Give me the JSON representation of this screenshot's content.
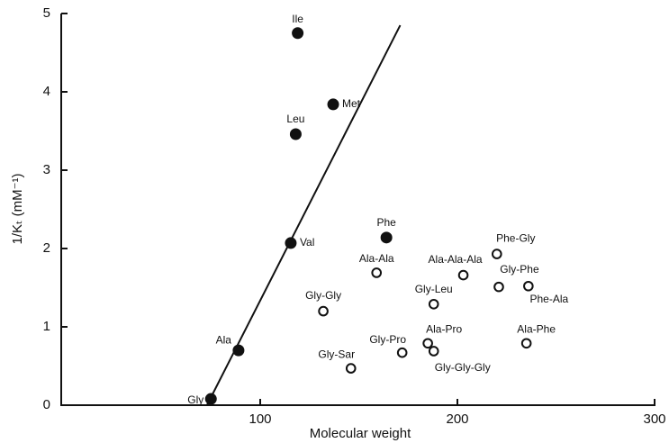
{
  "chart_data": {
    "type": "scatter",
    "xlabel": "Molecular weight",
    "ylabel": "1/Kₜ (mM⁻¹)",
    "xlim": [
      0,
      300
    ],
    "ylim": [
      0,
      5
    ],
    "xticks": [
      100,
      200,
      300
    ],
    "yticks": [
      0,
      1,
      2,
      3,
      4,
      5
    ],
    "color": "#111111",
    "series": [
      {
        "marker": "filled",
        "labels": [
          "Gly",
          "Ala",
          "Val",
          "Leu",
          "Ile",
          "Met",
          "Phe"
        ],
        "x": [
          75,
          89,
          115.5,
          118,
          119,
          137,
          164
        ],
        "values": [
          0.08,
          0.7,
          2.07,
          3.46,
          4.75,
          3.84,
          2.14
        ]
      },
      {
        "marker": "open",
        "labels": [
          "Ala-Ala",
          "Gly-Gly",
          "Gly-Sar",
          "Gly-Pro",
          "Ala-Pro",
          "Gly-Gly-Gly",
          "Gly-Leu",
          "Ala-Ala-Ala",
          "Phe-Gly",
          "Gly-Phe",
          "Phe-Ala",
          "Ala-Phe"
        ],
        "x": [
          159,
          132,
          146,
          172,
          185,
          188,
          188,
          203,
          220,
          221,
          236,
          235
        ],
        "values": [
          1.69,
          1.2,
          0.47,
          0.67,
          0.79,
          0.69,
          1.29,
          1.66,
          1.93,
          1.51,
          1.52,
          0.79
        ]
      },
      {
        "marker": "line",
        "x": [
          73,
          171
        ],
        "values": [
          0,
          4.85
        ]
      }
    ]
  }
}
